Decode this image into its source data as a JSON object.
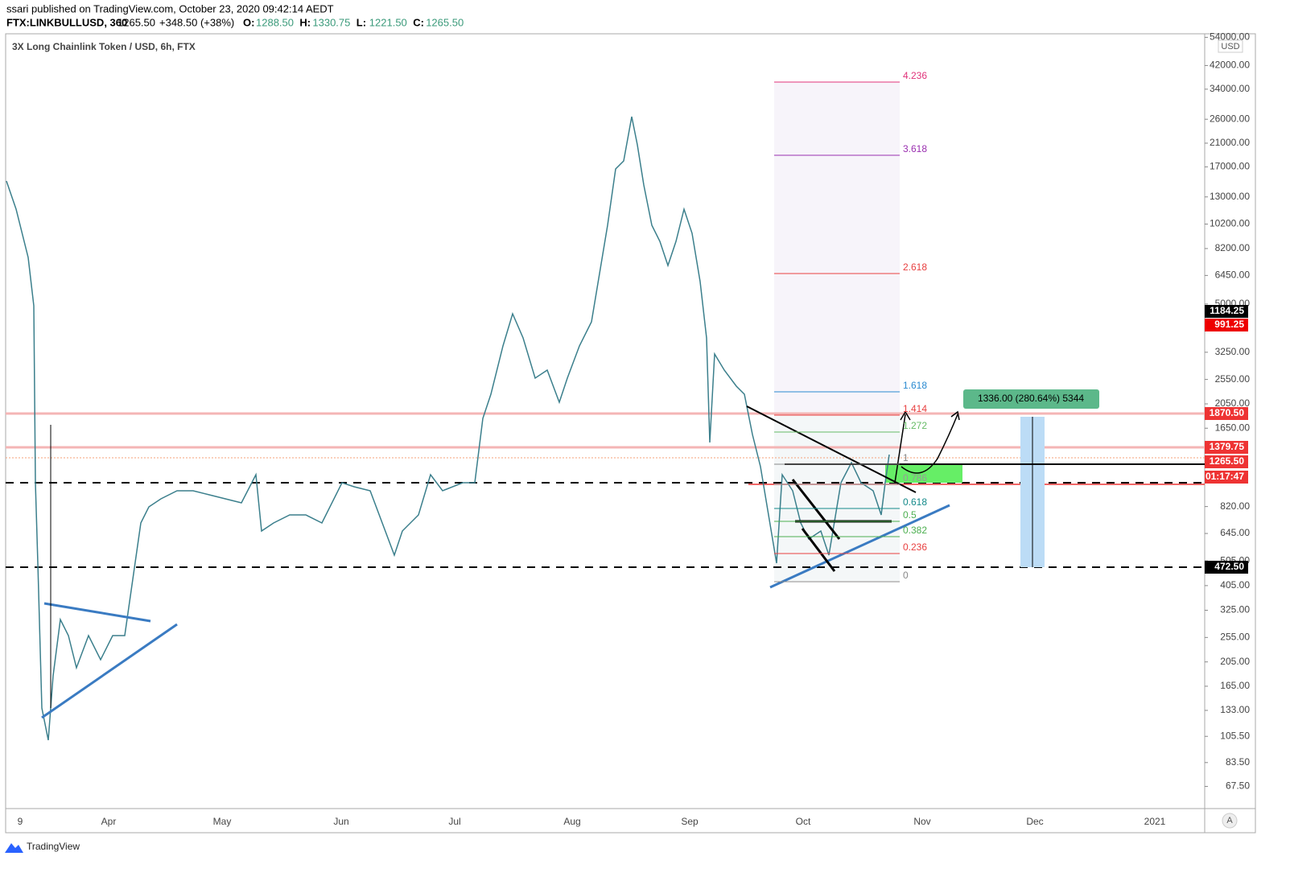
{
  "header": {
    "published": "ssari published on TradingView.com, October 23, 2020 09:42:14 AEDT",
    "symbol": "FTX:LINKBULLUSD, 360",
    "last": "1265.50",
    "change": "+348.50 (+38%)",
    "ohlc": [
      "O:",
      "1288.50",
      "H:",
      "1330.75",
      "L:",
      "1221.50",
      "C:",
      "1265.50"
    ]
  },
  "chart": {
    "title": "3X Long Chainlink Token / USD, 6h, FTX",
    "currency": "USD",
    "price_axis": [
      "54000.00",
      "42000.00",
      "34000.00",
      "26000.00",
      "21000.00",
      "17000.00",
      "13000.00",
      "10200.00",
      "8200.00",
      "6450.00",
      "5000.00",
      "3250.00",
      "2550.00",
      "2050.00",
      "1650.00",
      "820.00",
      "645.00",
      "505.00",
      "405.00",
      "325.00",
      "255.00",
      "205.00",
      "165.00",
      "133.00",
      "105.50",
      "83.50",
      "67.50"
    ],
    "time_axis": [
      "9",
      "Apr",
      "May",
      "Jun",
      "Jul",
      "Aug",
      "Sep",
      "Oct",
      "Nov",
      "Dec",
      "2021"
    ],
    "price_tags": [
      "1184.25",
      "991.25",
      "1870.50",
      "1379.75",
      "1265.50",
      "01:17:47",
      "472.50"
    ],
    "fib_levels": [
      "4.236",
      "3.618",
      "2.618",
      "1.618",
      "1.414",
      "1.272",
      "1",
      "0.786",
      "0.618",
      "0.5",
      "0.382",
      "0.236",
      "0"
    ],
    "measure": "1336.00 (280.64%) 5344",
    "scale_button": "A"
  },
  "footer": {
    "brand": "TradingView"
  }
}
